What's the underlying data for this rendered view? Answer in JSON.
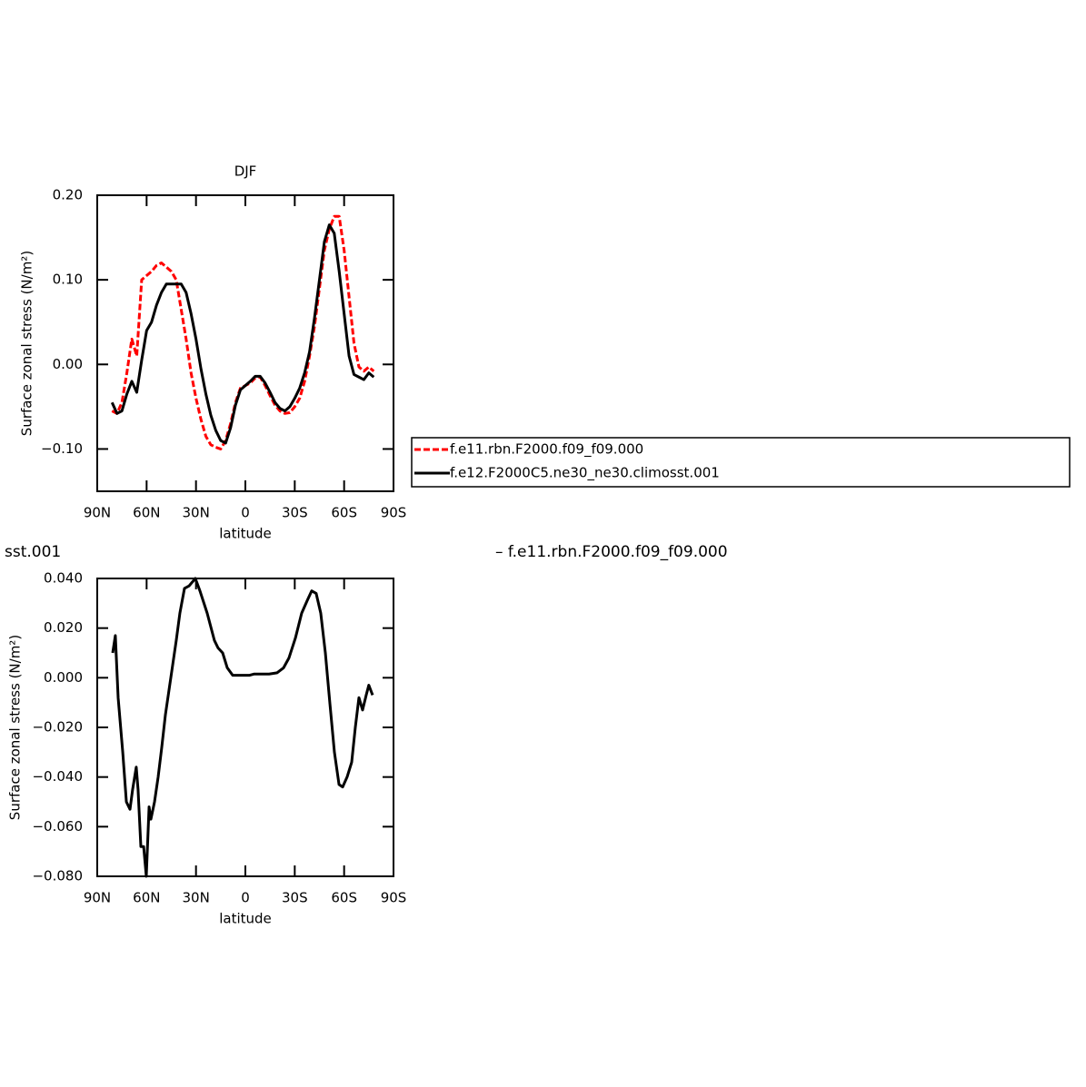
{
  "chart_data": [
    {
      "type": "line",
      "title": "DJF",
      "ylabel": "Surface zonal stress (N/m²)",
      "xlabel": "latitude",
      "xlim": [
        90,
        -90
      ],
      "xticks": [
        {
          "value": 90,
          "label": "90N"
        },
        {
          "value": 60,
          "label": "60N"
        },
        {
          "value": 30,
          "label": "30N"
        },
        0,
        {
          "value": -30,
          "label": "30S"
        },
        {
          "value": -60,
          "label": "60S"
        },
        {
          "value": -90,
          "label": "90S"
        }
      ],
      "ylim": [
        -0.15,
        0.2
      ],
      "yticks": [
        {
          "value": 0.2,
          "label": "0.20"
        },
        {
          "value": 0.1,
          "label": "0.10"
        },
        {
          "value": 0,
          "label": "0.00"
        },
        {
          "value": -0.1,
          "label": "−0.10"
        }
      ],
      "legend": "right",
      "x": [
        81,
        78,
        75,
        72,
        69,
        66,
        63,
        60,
        57,
        54,
        51,
        48,
        45,
        42,
        39,
        36,
        33,
        30,
        27,
        24,
        21,
        18,
        15,
        12,
        9,
        6,
        3,
        0,
        -3,
        -6,
        -9,
        -12,
        -15,
        -18,
        -21,
        -24,
        -27,
        -30,
        -33,
        -36,
        -39,
        -42,
        -45,
        -48,
        -51,
        -54,
        -57,
        -60,
        -63,
        -66,
        -69,
        -72,
        -75,
        -78
      ],
      "series": [
        {
          "name": "f.e11.rbn.F2000.f09_f09.000",
          "color": "#ff0000",
          "dashed": true,
          "values": [
            -0.055,
            -0.058,
            -0.045,
            -0.01,
            0.03,
            0.01,
            0.1,
            0.105,
            0.11,
            0.117,
            0.12,
            0.115,
            0.11,
            0.1,
            0.065,
            0.03,
            -0.01,
            -0.04,
            -0.065,
            -0.085,
            -0.095,
            -0.098,
            -0.1,
            -0.09,
            -0.07,
            -0.045,
            -0.028,
            -0.025,
            -0.022,
            -0.016,
            -0.015,
            -0.025,
            -0.037,
            -0.048,
            -0.055,
            -0.058,
            -0.057,
            -0.05,
            -0.04,
            -0.02,
            0.01,
            0.045,
            0.09,
            0.135,
            0.16,
            0.175,
            0.175,
            0.135,
            0.08,
            0.025,
            -0.003,
            -0.008,
            -0.003,
            -0.008
          ]
        },
        {
          "name": "f.e12.F2000C5.ne30_ne30.climosst.001",
          "color": "#000000",
          "dashed": false,
          "values": [
            -0.045,
            -0.058,
            -0.055,
            -0.035,
            -0.02,
            -0.033,
            0.005,
            0.04,
            0.05,
            0.07,
            0.085,
            0.095,
            0.095,
            0.095,
            0.095,
            0.085,
            0.06,
            0.03,
            -0.005,
            -0.035,
            -0.06,
            -0.078,
            -0.09,
            -0.093,
            -0.075,
            -0.048,
            -0.03,
            -0.025,
            -0.02,
            -0.014,
            -0.014,
            -0.022,
            -0.033,
            -0.045,
            -0.052,
            -0.055,
            -0.05,
            -0.04,
            -0.028,
            -0.01,
            0.015,
            0.055,
            0.1,
            0.145,
            0.165,
            0.155,
            0.11,
            0.06,
            0.01,
            -0.012,
            -0.015,
            -0.018,
            -0.01,
            -0.015
          ]
        }
      ]
    },
    {
      "type": "line",
      "title_left": "sst.001",
      "title_right": "– f.e11.rbn.F2000.f09_f09.000",
      "ylabel": "Surface zonal stress (N/m²)",
      "xlabel": "latitude",
      "xlim": [
        90,
        -90
      ],
      "xticks": [
        {
          "value": 90,
          "label": "90N"
        },
        {
          "value": 60,
          "label": "60N"
        },
        {
          "value": 30,
          "label": "30N"
        },
        0,
        {
          "value": -30,
          "label": "30S"
        },
        {
          "value": -60,
          "label": "60S"
        },
        {
          "value": -90,
          "label": "90S"
        }
      ],
      "ylim": [
        -0.08,
        0.04
      ],
      "yticks": [
        {
          "value": 0.04,
          "label": "0.040"
        },
        {
          "value": 0.02,
          "label": "0.020"
        },
        {
          "value": 0,
          "label": "0.000"
        },
        {
          "value": -0.02,
          "label": "−0.020"
        },
        {
          "value": -0.04,
          "label": "−0.040"
        },
        {
          "value": -0.06,
          "label": "−0.060"
        },
        {
          "value": -0.08,
          "label": "−0.080"
        }
      ],
      "x": [
        80.6,
        79,
        77.3,
        74.5,
        72.3,
        70.1,
        68.5,
        66.3,
        65.2,
        63.5,
        61.8,
        60.2,
        58.5,
        57.4,
        55.2,
        53,
        50.8,
        48.6,
        46.4,
        44.2,
        42,
        39.8,
        37,
        34.2,
        30.4,
        27.6,
        23.2,
        18.8,
        16.6,
        13.8,
        11,
        7.7,
        4.4,
        1.1,
        -2.6,
        -5.4,
        -9.8,
        -14.4,
        -19.3,
        -23.2,
        -26.5,
        -30.4,
        -34.2,
        -37.5,
        -40.3,
        -43,
        -45.8,
        -48.6,
        -51.3,
        -54.1,
        -56.9,
        -59.1,
        -61.8,
        -64.6,
        -66.8,
        -69,
        -71.2,
        -73.4,
        -75,
        -77.3
      ],
      "series": [
        {
          "color": "#000000",
          "dashed": false,
          "values": [
            0.01,
            0.017,
            -0.008,
            -0.03,
            -0.05,
            -0.053,
            -0.045,
            -0.036,
            -0.045,
            -0.068,
            -0.068,
            -0.08,
            -0.052,
            -0.057,
            -0.05,
            -0.04,
            -0.028,
            -0.015,
            -0.005,
            0.005,
            0.015,
            0.026,
            0.036,
            0.037,
            0.04,
            0.035,
            0.026,
            0.015,
            0.012,
            0.01,
            0.004,
            0.001,
            0.001,
            0.001,
            0.001,
            0.0015,
            0.0015,
            0.0015,
            0.002,
            0.004,
            0.008,
            0.016,
            0.026,
            0.031,
            0.035,
            0.034,
            0.026,
            0.01,
            -0.01,
            -0.03,
            -0.043,
            -0.044,
            -0.04,
            -0.034,
            -0.02,
            -0.008,
            -0.013,
            -0.007,
            -0.003,
            -0.007
          ]
        }
      ]
    }
  ]
}
